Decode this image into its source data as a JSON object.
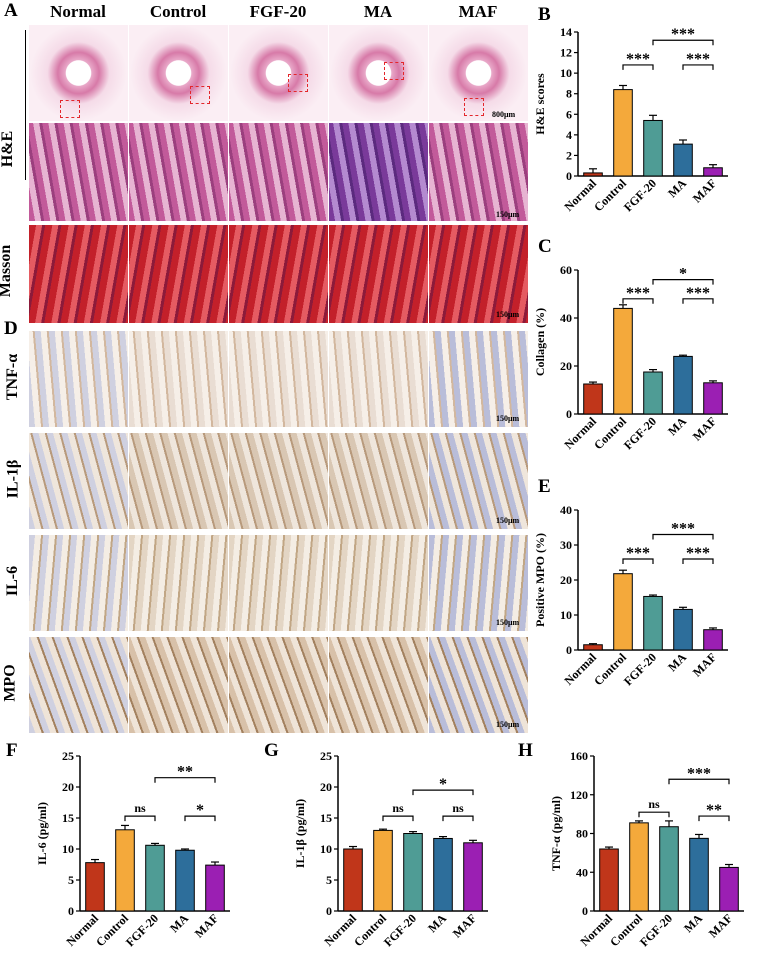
{
  "panels": {
    "A": "A",
    "B": "B",
    "C": "C",
    "D": "D",
    "E": "E",
    "F": "F",
    "G": "G",
    "H": "H"
  },
  "groups": [
    "Normal",
    "Control",
    "FGF-20",
    "MA",
    "MAF"
  ],
  "rows": {
    "he": "H&E",
    "masson": "Masson",
    "tnf": "TNF-α",
    "il1b": "IL-1β",
    "il6": "IL-6",
    "mpo": "MPO"
  },
  "scalebars": {
    "s800": "800μm",
    "s150": "150μm"
  },
  "colors": {
    "Normal": "#c0361a",
    "Control": "#f4a93b",
    "FGF-20": "#4f9c95",
    "MA": "#2d6e9b",
    "MAF": "#9b1fb3"
  },
  "chart_data": [
    {
      "id": "B",
      "type": "bar",
      "categories": [
        "Normal",
        "Control",
        "FGF-20",
        "MA",
        "MAF"
      ],
      "values": [
        0.3,
        8.4,
        5.4,
        3.1,
        0.8
      ],
      "errors": [
        0.4,
        0.4,
        0.5,
        0.4,
        0.3
      ],
      "ylabel": "H&E scores",
      "ylim": [
        0,
        14
      ],
      "yticks": [
        0,
        2,
        4,
        6,
        8,
        10,
        12,
        14
      ],
      "sig": [
        {
          "from": 1,
          "to": 2,
          "label": "***",
          "level": 10.8
        },
        {
          "from": 3,
          "to": 4,
          "label": "***",
          "level": 10.8
        },
        {
          "from": 2,
          "to": 4,
          "label": "***",
          "level": 13.2
        }
      ]
    },
    {
      "id": "C",
      "type": "bar",
      "categories": [
        "Normal",
        "Control",
        "FGF-20",
        "MA",
        "MAF"
      ],
      "values": [
        12.5,
        44.0,
        17.5,
        24.0,
        13.0
      ],
      "errors": [
        0.8,
        1.5,
        1.0,
        0.5,
        0.8
      ],
      "ylabel": "Collagen (%)",
      "ylim": [
        0,
        60
      ],
      "yticks": [
        0,
        20,
        40,
        60
      ],
      "sig": [
        {
          "from": 1,
          "to": 2,
          "label": "***",
          "level": 48
        },
        {
          "from": 3,
          "to": 4,
          "label": "***",
          "level": 48
        },
        {
          "from": 2,
          "to": 4,
          "label": "*",
          "level": 56
        }
      ]
    },
    {
      "id": "E",
      "type": "bar",
      "categories": [
        "Normal",
        "Control",
        "FGF-20",
        "MA",
        "MAF"
      ],
      "values": [
        1.5,
        21.8,
        15.3,
        11.6,
        5.8
      ],
      "errors": [
        0.3,
        1.0,
        0.4,
        0.6,
        0.5
      ],
      "ylabel": "Positive MPO (%)",
      "ylim": [
        0,
        40
      ],
      "yticks": [
        0,
        10,
        20,
        30,
        40
      ],
      "sig": [
        {
          "from": 1,
          "to": 2,
          "label": "***",
          "level": 26
        },
        {
          "from": 3,
          "to": 4,
          "label": "***",
          "level": 26
        },
        {
          "from": 2,
          "to": 4,
          "label": "***",
          "level": 33
        }
      ]
    },
    {
      "id": "F",
      "type": "bar",
      "categories": [
        "Normal",
        "Control",
        "FGF-20",
        "MA",
        "MAF"
      ],
      "values": [
        7.8,
        13.1,
        10.6,
        9.8,
        7.4
      ],
      "errors": [
        0.5,
        0.7,
        0.3,
        0.2,
        0.5
      ],
      "ylabel": "IL-6 (pg/ml)",
      "ylim": [
        0,
        25
      ],
      "yticks": [
        0,
        5,
        10,
        15,
        20,
        25
      ],
      "sig": [
        {
          "from": 1,
          "to": 2,
          "label": "ns",
          "level": 15.3
        },
        {
          "from": 3,
          "to": 4,
          "label": "*",
          "level": 15.3
        },
        {
          "from": 2,
          "to": 4,
          "label": "**",
          "level": 21.5
        }
      ]
    },
    {
      "id": "G",
      "type": "bar",
      "categories": [
        "Normal",
        "Control",
        "FGF-20",
        "MA",
        "MAF"
      ],
      "values": [
        10.0,
        13.0,
        12.5,
        11.7,
        11.0
      ],
      "errors": [
        0.4,
        0.2,
        0.3,
        0.3,
        0.4
      ],
      "ylabel": "IL-1β (pg/ml)",
      "ylim": [
        0,
        25
      ],
      "yticks": [
        0,
        5,
        10,
        15,
        20,
        25
      ],
      "sig": [
        {
          "from": 1,
          "to": 2,
          "label": "ns",
          "level": 15.3
        },
        {
          "from": 3,
          "to": 4,
          "label": "ns",
          "level": 15.3
        },
        {
          "from": 2,
          "to": 4,
          "label": "*",
          "level": 19.5
        }
      ]
    },
    {
      "id": "H",
      "type": "bar",
      "categories": [
        "Normal",
        "Control",
        "FGF-20",
        "MA",
        "MAF"
      ],
      "values": [
        64,
        91,
        87,
        75,
        45
      ],
      "errors": [
        2,
        2,
        6,
        4,
        3
      ],
      "ylabel": "TNF-α (pg/ml)",
      "ylim": [
        0,
        160
      ],
      "yticks": [
        0,
        40,
        80,
        120,
        160
      ],
      "sig": [
        {
          "from": 1,
          "to": 2,
          "label": "ns",
          "level": 102
        },
        {
          "from": 3,
          "to": 4,
          "label": "**",
          "level": 98
        },
        {
          "from": 2,
          "to": 4,
          "label": "***",
          "level": 136
        }
      ]
    }
  ]
}
